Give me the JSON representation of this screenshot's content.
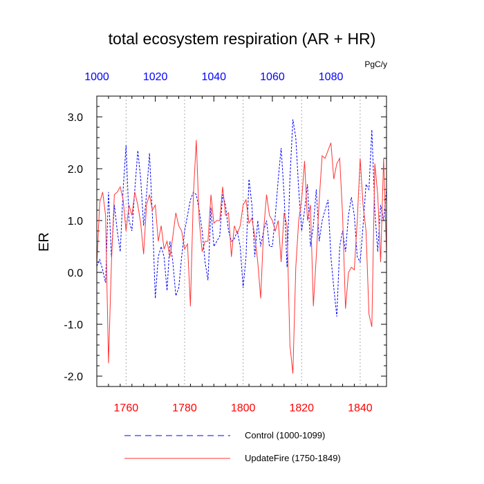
{
  "chart_data": {
    "type": "line",
    "title": "total ecosystem respiration (AR + HR)",
    "ylabel": "ER",
    "units": "PgC/y",
    "ylim": [
      -2.2,
      3.4
    ],
    "yticks": [
      -2.0,
      -1.0,
      0.0,
      1.0,
      2.0,
      3.0
    ],
    "ytick_labels": [
      "-2.0",
      "-1.0",
      "0.0",
      "1.0",
      "2.0",
      "3.0"
    ],
    "bottom_axis": {
      "range": [
        1750,
        1849
      ],
      "ticks": [
        1760,
        1780,
        1800,
        1820,
        1840
      ],
      "labels": [
        "1760",
        "1780",
        "1800",
        "1820",
        "1840"
      ],
      "color": "#ff0000"
    },
    "top_axis": {
      "range": [
        1000,
        1099
      ],
      "ticks": [
        1000,
        1020,
        1040,
        1060,
        1080
      ],
      "labels": [
        "1000",
        "1020",
        "1040",
        "1060",
        "1080"
      ],
      "color": "#0000ff"
    },
    "grid": "vertical dotted at major ticks",
    "series": [
      {
        "name": "Control (1000-1099)",
        "axis": "top",
        "color": "#0000ff",
        "style": "dashed",
        "x_start": 1000,
        "values": [
          0.12,
          0.25,
          0.05,
          -0.2,
          1.55,
          0.3,
          1.3,
          0.8,
          0.4,
          1.6,
          2.45,
          1.0,
          0.8,
          1.6,
          2.35,
          1.8,
          0.9,
          1.5,
          2.3,
          1.1,
          -0.5,
          0.3,
          0.5,
          0.3,
          -0.35,
          0.6,
          0.2,
          -0.45,
          -0.3,
          0.3,
          0.8,
          1.1,
          1.4,
          1.55,
          1.5,
          1.2,
          0.8,
          0.2,
          -0.15,
          1.25,
          0.5,
          0.6,
          0.7,
          1.5,
          1.3,
          0.8,
          0.6,
          0.65,
          0.8,
          0.5,
          -0.3,
          0.3,
          1.8,
          1.3,
          0.3,
          1.0,
          0.5,
          0.8,
          1.0,
          0.5,
          0.5,
          1.1,
          1.8,
          2.4,
          1.5,
          0.1,
          1.8,
          2.95,
          2.6,
          1.6,
          0.8,
          1.2,
          1.7,
          0.5,
          0.9,
          1.6,
          0.6,
          1.0,
          1.2,
          1.4,
          0.3,
          -0.3,
          -0.85,
          0.5,
          0.8,
          0.4,
          1.1,
          1.45,
          1.1,
          0.3,
          0.2,
          0.9,
          1.7,
          1.6,
          2.75,
          1.2,
          0.4,
          1.3,
          1.0,
          1.6
        ]
      },
      {
        "name": "UpdateFire (1750-1849)",
        "axis": "bottom",
        "color": "#ff3333",
        "style": "solid",
        "x_start": 1750,
        "values": [
          0.15,
          1.35,
          1.55,
          1.1,
          -1.75,
          0.2,
          1.5,
          1.55,
          1.65,
          1.4,
          0.8,
          1.3,
          1.1,
          1.55,
          1.3,
          0.95,
          0.35,
          1.3,
          1.5,
          1.2,
          1.3,
          0.6,
          0.9,
          0.45,
          0.6,
          0.3,
          0.7,
          1.15,
          0.9,
          0.8,
          0.45,
          0.55,
          -0.65,
          1.5,
          2.55,
          1.0,
          0.4,
          0.6,
          0.6,
          1.5,
          0.95,
          1.0,
          1.0,
          1.65,
          1.1,
          1.15,
          0.3,
          0.9,
          0.75,
          0.9,
          1.3,
          1.4,
          0.95,
          1.05,
          0.7,
          0.2,
          -0.5,
          0.8,
          1.5,
          1.1,
          1.0,
          0.8,
          1.0,
          0.2,
          1.15,
          0.9,
          -1.4,
          -1.95,
          0.1,
          1.0,
          1.4,
          2.15,
          1.0,
          1.3,
          -0.65,
          0.3,
          1.4,
          2.25,
          2.2,
          2.35,
          2.5,
          1.8,
          2.1,
          2.2,
          1.1,
          -0.7,
          0.0,
          0.1,
          0.05,
          1.0,
          2.2,
          1.3,
          0.8,
          -0.8,
          -1.05,
          2.1,
          1.5,
          0.2,
          2.2,
          0.4
        ]
      }
    ],
    "legend": {
      "placement": "bottom-center",
      "entries": [
        "Control (1000-1099)",
        "UpdateFire (1750-1849)"
      ]
    }
  }
}
